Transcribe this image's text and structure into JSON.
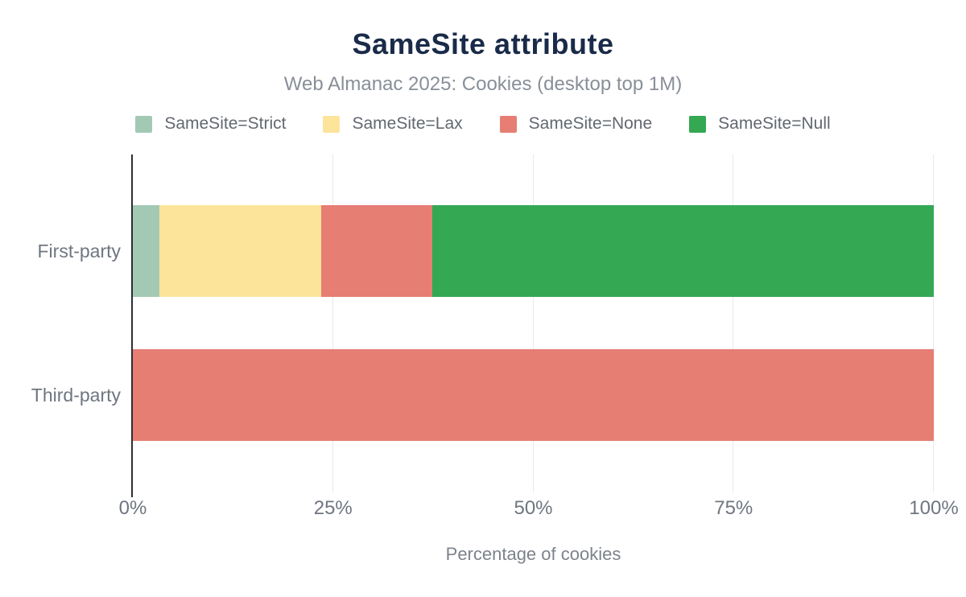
{
  "chart_data": {
    "type": "bar",
    "orientation": "horizontal",
    "stacked": true,
    "title": "SameSite attribute",
    "subtitle": "Web Almanac 2025: Cookies (desktop top 1M)",
    "xlabel": "Percentage of cookies",
    "ylabel": "",
    "categories": [
      "First-party",
      "Third-party"
    ],
    "series": [
      {
        "name": "SameSite=Strict",
        "color": "#a3c9b4",
        "values": [
          3.3,
          0
        ]
      },
      {
        "name": "SameSite=Lax",
        "color": "#fde49b",
        "values": [
          20.2,
          0
        ]
      },
      {
        "name": "SameSite=None",
        "color": "#e67e73",
        "values": [
          13.9,
          100
        ]
      },
      {
        "name": "SameSite=Null",
        "color": "#34a853",
        "values": [
          62.6,
          0
        ]
      }
    ],
    "x_ticks": [
      "0%",
      "25%",
      "50%",
      "75%",
      "100%"
    ],
    "xlim": [
      0,
      100
    ],
    "grid": "vertical-gridlines-on",
    "legend_position": "top"
  },
  "style": {
    "title_color": "#1a2b49",
    "subtitle_color": "#898f98",
    "label_color": "#6f7680",
    "legend_text_color": "#62686f",
    "gridline_color": "#e9e9e9",
    "axis_color": "#2b2f33",
    "background_color": "#ffffff"
  }
}
